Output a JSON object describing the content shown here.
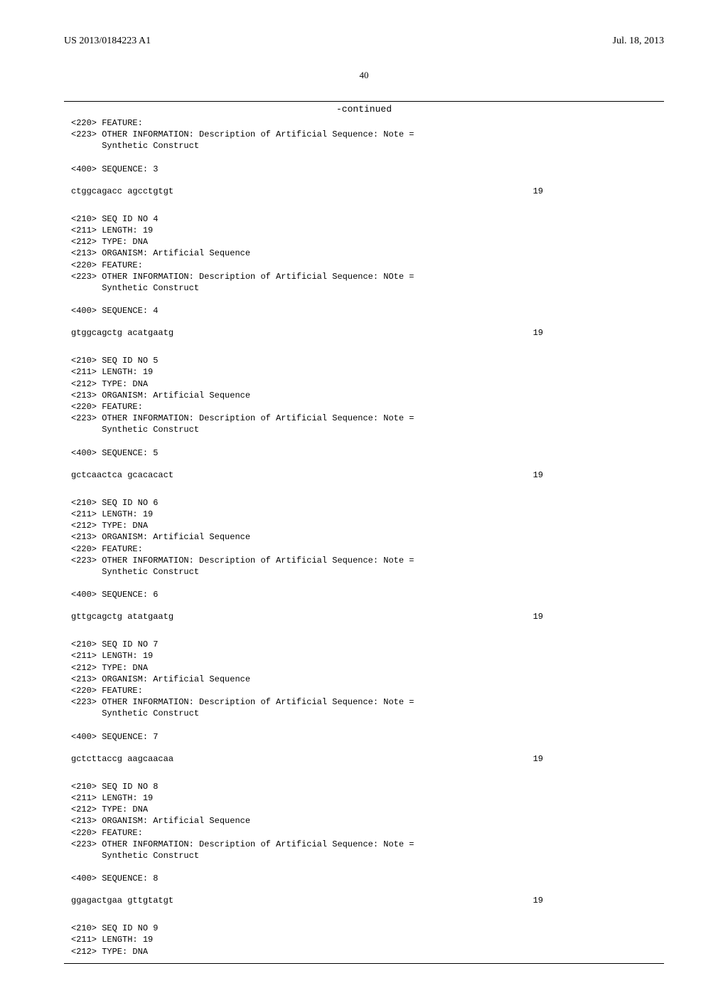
{
  "header": {
    "doc_number": "US 2013/0184223 A1",
    "date": "Jul. 18, 2013"
  },
  "page_number": "40",
  "continued_label": "-continued",
  "entries": [
    {
      "preface_lines": [
        "<220> FEATURE:",
        "<223> OTHER INFORMATION: Description of Artificial Sequence: Note =",
        "      Synthetic Construct"
      ],
      "seq_label": "<400> SEQUENCE: 3",
      "sequence": "ctggcagacc agcctgtgt",
      "length": "19"
    },
    {
      "preface_lines": [
        "<210> SEQ ID NO 4",
        "<211> LENGTH: 19",
        "<212> TYPE: DNA",
        "<213> ORGANISM: Artificial Sequence",
        "<220> FEATURE:",
        "<223> OTHER INFORMATION: Description of Artificial Sequence: NOte =",
        "      Synthetic Construct"
      ],
      "seq_label": "<400> SEQUENCE: 4",
      "sequence": "gtggcagctg acatgaatg",
      "length": "19"
    },
    {
      "preface_lines": [
        "<210> SEQ ID NO 5",
        "<211> LENGTH: 19",
        "<212> TYPE: DNA",
        "<213> ORGANISM: Artificial Sequence",
        "<220> FEATURE:",
        "<223> OTHER INFORMATION: Description of Artificial Sequence: Note =",
        "      Synthetic Construct"
      ],
      "seq_label": "<400> SEQUENCE: 5",
      "sequence": "gctcaactca gcacacact",
      "length": "19"
    },
    {
      "preface_lines": [
        "<210> SEQ ID NO 6",
        "<211> LENGTH: 19",
        "<212> TYPE: DNA",
        "<213> ORGANISM: Artificial Sequence",
        "<220> FEATURE:",
        "<223> OTHER INFORMATION: Description of Artificial Sequence: Note =",
        "      Synthetic Construct"
      ],
      "seq_label": "<400> SEQUENCE: 6",
      "sequence": "gttgcagctg atatgaatg",
      "length": "19"
    },
    {
      "preface_lines": [
        "<210> SEQ ID NO 7",
        "<211> LENGTH: 19",
        "<212> TYPE: DNA",
        "<213> ORGANISM: Artificial Sequence",
        "<220> FEATURE:",
        "<223> OTHER INFORMATION: Description of Artificial Sequence: Note =",
        "      Synthetic Construct"
      ],
      "seq_label": "<400> SEQUENCE: 7",
      "sequence": "gctcttaccg aagcaacaa",
      "length": "19"
    },
    {
      "preface_lines": [
        "<210> SEQ ID NO 8",
        "<211> LENGTH: 19",
        "<212> TYPE: DNA",
        "<213> ORGANISM: Artificial Sequence",
        "<220> FEATURE:",
        "<223> OTHER INFORMATION: Description of Artificial Sequence: Note =",
        "      Synthetic Construct"
      ],
      "seq_label": "<400> SEQUENCE: 8",
      "sequence": "ggagactgaa gttgtatgt",
      "length": "19"
    }
  ],
  "trailing_lines": [
    "<210> SEQ ID NO 9",
    "<211> LENGTH: 19",
    "<212> TYPE: DNA"
  ]
}
